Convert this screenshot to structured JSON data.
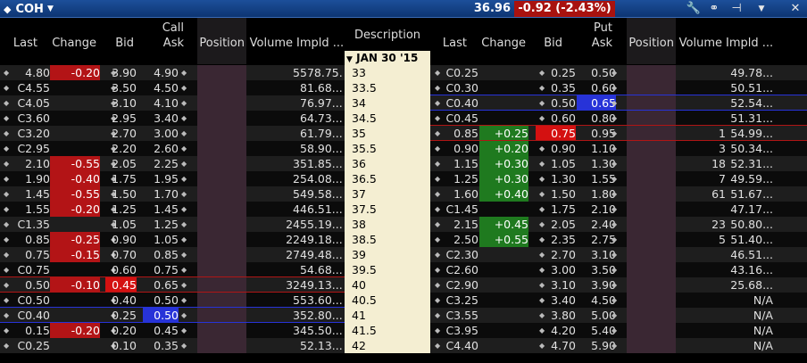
{
  "ticker": {
    "symbol": "COH",
    "last": "36.96",
    "change": "-0.92 (-2.43%)"
  },
  "toolbar": {
    "wrench_icon": "wrench-icon",
    "link_icon": "link-icon",
    "pin_icon": "pin-icon",
    "menu_icon": "caret-down-icon",
    "close_icon": "close-icon"
  },
  "headers": {
    "call_label": "Call",
    "put_label": "Put",
    "cols": [
      "Last",
      "Change",
      "Bid",
      "Ask",
      "Position",
      "Volume",
      "Impld ...",
      "Description",
      "Last",
      "Change",
      "Bid",
      "Ask",
      "Position",
      "Volume",
      "Impld ..."
    ]
  },
  "expiry": "JAN 30 '15",
  "rows": [
    {
      "strike": "33",
      "call": {
        "last": "4.80",
        "change": "-0.20",
        "bid": "3.90",
        "ask": "4.90",
        "volume": "5",
        "impl": "578.75..."
      },
      "put": {
        "last": "C0.25",
        "change": "",
        "bid": "0.25",
        "ask": "0.50",
        "volume": "",
        "impl": "49.78..."
      }
    },
    {
      "strike": "33.5",
      "call": {
        "last": "C4.55",
        "change": "",
        "bid": "3.50",
        "ask": "4.50",
        "volume": "",
        "impl": "81.68..."
      },
      "put": {
        "last": "C0.30",
        "change": "",
        "bid": "0.35",
        "ask": "0.60",
        "volume": "",
        "impl": "50.51..."
      }
    },
    {
      "strike": "34",
      "call": {
        "last": "C4.05",
        "change": "",
        "bid": "3.10",
        "ask": "4.10",
        "volume": "",
        "impl": "76.97..."
      },
      "put": {
        "last": "C0.40",
        "change": "",
        "bid": "0.50",
        "ask": "0.65",
        "volume": "",
        "impl": "52.54..."
      }
    },
    {
      "strike": "34.5",
      "call": {
        "last": "C3.60",
        "change": "",
        "bid": "2.95",
        "ask": "3.40",
        "volume": "",
        "impl": "64.73..."
      },
      "put": {
        "last": "C0.45",
        "change": "",
        "bid": "0.60",
        "ask": "0.80",
        "volume": "",
        "impl": "51.31..."
      }
    },
    {
      "strike": "35",
      "call": {
        "last": "C3.20",
        "change": "",
        "bid": "2.70",
        "ask": "3.00",
        "volume": "",
        "impl": "61.79..."
      },
      "put": {
        "last": "0.85",
        "change": "+0.25",
        "bid": "0.75",
        "ask": "0.95",
        "volume": "1",
        "impl": "54.99..."
      }
    },
    {
      "strike": "35.5",
      "call": {
        "last": "C2.95",
        "change": "",
        "bid": "2.20",
        "ask": "2.60",
        "volume": "",
        "impl": "58.90..."
      },
      "put": {
        "last": "0.90",
        "change": "+0.20",
        "bid": "0.90",
        "ask": "1.10",
        "volume": "3",
        "impl": "50.34..."
      }
    },
    {
      "strike": "36",
      "call": {
        "last": "2.10",
        "change": "-0.55",
        "bid": "2.05",
        "ask": "2.25",
        "volume": "3",
        "impl": "51.85..."
      },
      "put": {
        "last": "1.15",
        "change": "+0.30",
        "bid": "1.05",
        "ask": "1.30",
        "volume": "18",
        "impl": "52.31..."
      }
    },
    {
      "strike": "36.5",
      "call": {
        "last": "1.90",
        "change": "-0.40",
        "bid": "1.75",
        "ask": "1.95",
        "volume": "2",
        "impl": "54.08..."
      },
      "put": {
        "last": "1.25",
        "change": "+0.30",
        "bid": "1.30",
        "ask": "1.55",
        "volume": "7",
        "impl": "49.59..."
      }
    },
    {
      "strike": "37",
      "call": {
        "last": "1.45",
        "change": "-0.55",
        "bid": "1.50",
        "ask": "1.70",
        "volume": "5",
        "impl": "49.58..."
      },
      "put": {
        "last": "1.60",
        "change": "+0.40",
        "bid": "1.50",
        "ask": "1.80",
        "volume": "61",
        "impl": "51.67..."
      }
    },
    {
      "strike": "37.5",
      "call": {
        "last": "1.55",
        "change": "-0.20",
        "bid": "1.25",
        "ask": "1.45",
        "volume": "4",
        "impl": "46.51..."
      },
      "put": {
        "last": "C1.45",
        "change": "",
        "bid": "1.75",
        "ask": "2.10",
        "volume": "",
        "impl": "47.17..."
      }
    },
    {
      "strike": "38",
      "call": {
        "last": "C1.35",
        "change": "",
        "bid": "1.05",
        "ask": "1.25",
        "volume": "24",
        "impl": "55.19..."
      },
      "put": {
        "last": "2.15",
        "change": "+0.45",
        "bid": "2.05",
        "ask": "2.40",
        "volume": "23",
        "impl": "50.80..."
      }
    },
    {
      "strike": "38.5",
      "call": {
        "last": "0.85",
        "change": "-0.25",
        "bid": "0.90",
        "ask": "1.05",
        "volume": "22",
        "impl": "49.18..."
      },
      "put": {
        "last": "2.50",
        "change": "+0.55",
        "bid": "2.35",
        "ask": "2.75",
        "volume": "5",
        "impl": "51.40..."
      }
    },
    {
      "strike": "39",
      "call": {
        "last": "0.75",
        "change": "-0.15",
        "bid": "0.70",
        "ask": "0.85",
        "volume": "27",
        "impl": "49.48..."
      },
      "put": {
        "last": "C2.30",
        "change": "",
        "bid": "2.70",
        "ask": "3.10",
        "volume": "",
        "impl": "46.51..."
      }
    },
    {
      "strike": "39.5",
      "call": {
        "last": "C0.75",
        "change": "",
        "bid": "0.60",
        "ask": "0.75",
        "volume": "",
        "impl": "54.68..."
      },
      "put": {
        "last": "C2.60",
        "change": "",
        "bid": "3.00",
        "ask": "3.50",
        "volume": "",
        "impl": "43.16..."
      }
    },
    {
      "strike": "40",
      "call": {
        "last": "0.50",
        "change": "-0.10",
        "bid": "0.45",
        "ask": "0.65",
        "volume": "32",
        "impl": "49.13..."
      },
      "put": {
        "last": "C2.90",
        "change": "",
        "bid": "3.10",
        "ask": "3.90",
        "volume": "",
        "impl": "25.68..."
      }
    },
    {
      "strike": "40.5",
      "call": {
        "last": "C0.50",
        "change": "",
        "bid": "0.40",
        "ask": "0.50",
        "volume": "5",
        "impl": "53.60..."
      },
      "put": {
        "last": "C3.25",
        "change": "",
        "bid": "3.40",
        "ask": "4.50",
        "volume": "",
        "impl": "N/A"
      }
    },
    {
      "strike": "41",
      "call": {
        "last": "C0.40",
        "change": "",
        "bid": "0.25",
        "ask": "0.50",
        "volume": "3",
        "impl": "52.80..."
      },
      "put": {
        "last": "C3.55",
        "change": "",
        "bid": "3.80",
        "ask": "5.00",
        "volume": "",
        "impl": "N/A"
      }
    },
    {
      "strike": "41.5",
      "call": {
        "last": "0.15",
        "change": "-0.20",
        "bid": "0.20",
        "ask": "0.45",
        "volume": "3",
        "impl": "45.50..."
      },
      "put": {
        "last": "C3.95",
        "change": "",
        "bid": "4.20",
        "ask": "5.40",
        "volume": "",
        "impl": "N/A"
      }
    },
    {
      "strike": "42",
      "call": {
        "last": "C0.25",
        "change": "",
        "bid": "0.10",
        "ask": "0.35",
        "volume": "",
        "impl": "52.13..."
      },
      "put": {
        "last": "C4.40",
        "change": "",
        "bid": "4.70",
        "ask": "5.90",
        "volume": "",
        "impl": "N/A"
      }
    }
  ],
  "colors": {
    "negative": "#b31416",
    "positive": "#1f7a1f",
    "bid_highlight": "#d41111",
    "ask_highlight": "#2733d8",
    "description_bg": "#f4eed2",
    "position_bg": "#3a2733",
    "title_bg": "#0d3572"
  }
}
